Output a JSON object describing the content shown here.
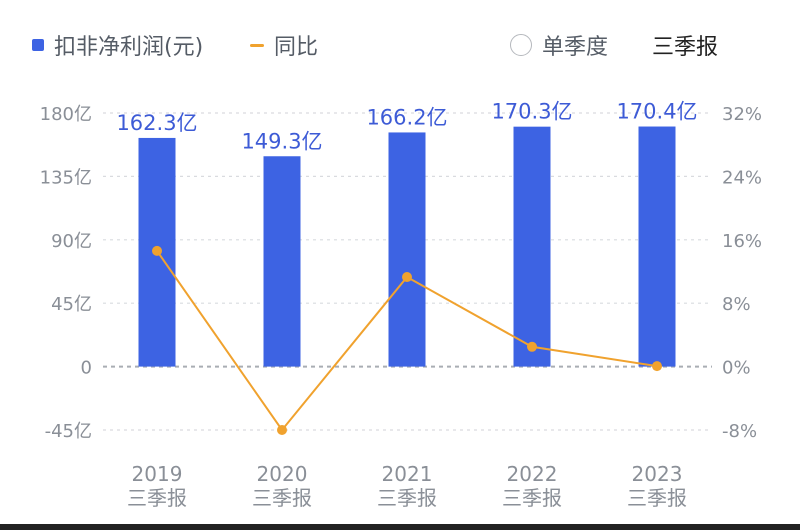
{
  "legend": {
    "bar_label": "扣非净利润(元)",
    "line_label": "同比",
    "toggle_label": "单季度",
    "period_label": "三季报"
  },
  "colors": {
    "bar": "#3d63e3",
    "line": "#f0a22e",
    "axis_text": "#8a8f97",
    "label_text": "#3d5bd6"
  },
  "chart_data": {
    "type": "bar",
    "categories": [
      "2019",
      "2020",
      "2021",
      "2022",
      "2023"
    ],
    "category_sublabel": "三季报",
    "series": [
      {
        "name": "扣非净利润(元)",
        "type": "bar",
        "axis": "left",
        "values": [
          162.3,
          149.3,
          166.2,
          170.3,
          170.4
        ],
        "data_labels": [
          "162.3亿",
          "149.3亿",
          "166.2亿",
          "170.3亿",
          "170.4亿"
        ]
      },
      {
        "name": "同比",
        "type": "line",
        "axis": "right",
        "values": [
          14.6,
          -8.0,
          11.3,
          2.5,
          0.06
        ]
      }
    ],
    "y_left": {
      "ticks": [
        180,
        135,
        90,
        45,
        0,
        -45
      ],
      "tick_labels": [
        "180亿",
        "135亿",
        "90亿",
        "45亿",
        "0",
        "-45亿"
      ],
      "range": [
        -45,
        180
      ]
    },
    "y_right": {
      "ticks": [
        32,
        24,
        16,
        8,
        0,
        -8
      ],
      "tick_labels": [
        "32%",
        "24%",
        "16%",
        "8%",
        "0%",
        "-8%"
      ],
      "range": [
        -8,
        32
      ]
    },
    "zero_line": "dashed",
    "grid": "dashed-horizontal"
  }
}
